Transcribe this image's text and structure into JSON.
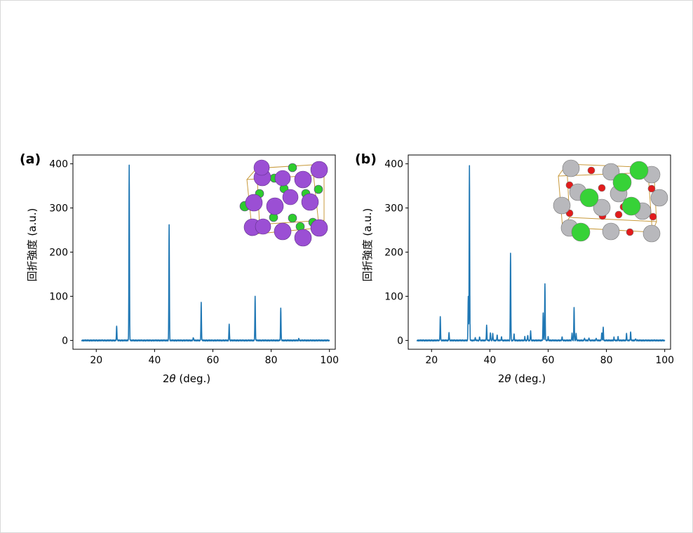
{
  "chart_data": [
    {
      "panel_label": "(a)",
      "type": "line",
      "xlabel_prefix": "2",
      "xlabel_symbol": "θ",
      "xlabel_suffix": " (deg.)",
      "ylabel": "回折強度 (a.u.)",
      "xlim": [
        12,
        102
      ],
      "ylim": [
        -20,
        420
      ],
      "xticks": [
        20,
        40,
        60,
        80,
        100
      ],
      "yticks": [
        0,
        100,
        200,
        300,
        400
      ],
      "x_range": [
        15,
        100
      ],
      "peaks": [
        {
          "x": 27.0,
          "y": 32
        },
        {
          "x": 31.3,
          "y": 397
        },
        {
          "x": 45.0,
          "y": 262
        },
        {
          "x": 53.3,
          "y": 7
        },
        {
          "x": 56.0,
          "y": 85
        },
        {
          "x": 65.6,
          "y": 37
        },
        {
          "x": 74.5,
          "y": 99
        },
        {
          "x": 83.3,
          "y": 73
        },
        {
          "x": 89.5,
          "y": 4
        }
      ],
      "line_color": "#1f77b4"
    },
    {
      "panel_label": "(b)",
      "type": "line",
      "xlabel_prefix": "2",
      "xlabel_symbol": "θ",
      "xlabel_suffix": " (deg.)",
      "ylabel": "回折強度 (a.u.)",
      "xlim": [
        12,
        102
      ],
      "ylim": [
        -20,
        420
      ],
      "xticks": [
        20,
        40,
        60,
        80,
        100
      ],
      "yticks": [
        0,
        100,
        200,
        300,
        400
      ],
      "x_range": [
        15,
        100
      ],
      "peaks": [
        {
          "x": 23.0,
          "y": 53
        },
        {
          "x": 26.0,
          "y": 18
        },
        {
          "x": 32.6,
          "y": 100
        },
        {
          "x": 33.0,
          "y": 397
        },
        {
          "x": 35.0,
          "y": 6
        },
        {
          "x": 36.5,
          "y": 8
        },
        {
          "x": 38.9,
          "y": 34
        },
        {
          "x": 40.2,
          "y": 18
        },
        {
          "x": 41.0,
          "y": 16
        },
        {
          "x": 42.5,
          "y": 12
        },
        {
          "x": 44.0,
          "y": 8
        },
        {
          "x": 47.1,
          "y": 198
        },
        {
          "x": 48.3,
          "y": 15
        },
        {
          "x": 52.0,
          "y": 8
        },
        {
          "x": 53.0,
          "y": 12
        },
        {
          "x": 54.0,
          "y": 22
        },
        {
          "x": 58.3,
          "y": 62
        },
        {
          "x": 58.9,
          "y": 127
        },
        {
          "x": 60.0,
          "y": 8
        },
        {
          "x": 64.8,
          "y": 8
        },
        {
          "x": 68.2,
          "y": 17
        },
        {
          "x": 68.9,
          "y": 76
        },
        {
          "x": 69.6,
          "y": 16
        },
        {
          "x": 72.5,
          "y": 5
        },
        {
          "x": 74.0,
          "y": 6
        },
        {
          "x": 76.5,
          "y": 5
        },
        {
          "x": 78.4,
          "y": 18
        },
        {
          "x": 78.9,
          "y": 29
        },
        {
          "x": 82.6,
          "y": 7
        },
        {
          "x": 84.0,
          "y": 8
        },
        {
          "x": 86.9,
          "y": 15
        },
        {
          "x": 88.3,
          "y": 19
        },
        {
          "x": 90.0,
          "y": 4
        }
      ],
      "line_color": "#1f77b4"
    }
  ],
  "insets": {
    "a": {
      "atom_colors": [
        "#9b4fd4",
        "#2ecc2e"
      ]
    },
    "b": {
      "atom_colors": [
        "#b8b8bc",
        "#37d237",
        "#e21b1b"
      ]
    }
  }
}
